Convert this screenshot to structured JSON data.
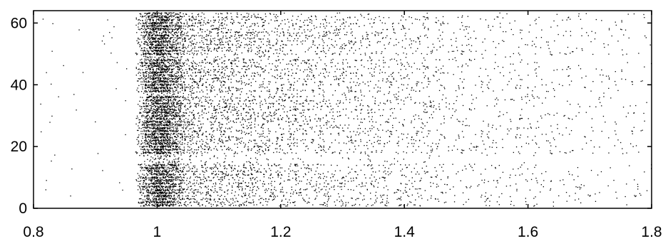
{
  "chart_data": {
    "type": "scatter",
    "title": "",
    "xlabel": "",
    "ylabel": "",
    "xlim": [
      0.8,
      1.8
    ],
    "ylim": [
      0,
      64
    ],
    "xticks": [
      0.8,
      1,
      1.2,
      1.4,
      1.6,
      1.8
    ],
    "xtick_labels": [
      "0.8",
      "1",
      "1.2",
      "1.4",
      "1.6",
      "1.8"
    ],
    "yticks": [
      0,
      20,
      40,
      60
    ],
    "ytick_labels": [
      "0",
      "20",
      "40",
      "60"
    ],
    "grid": false,
    "legend": "none",
    "marker_color": "#000000",
    "description_of_points": "Raster of events: each row (y = 1..63) has a dense cluster of points starting near x = 0.97–1.03 with density decaying toward x = 1.8; a few sparse points appear between x = 0.8 and 0.97. Rows 1–14, 18–36, 38–48, 50–62 are populated; rows near 15–17, 37 and 49 are sparse.",
    "series": [
      {
        "points_sample": [
          [
            0.82,
            6
          ],
          [
            0.86,
            4
          ],
          [
            0.9,
            28
          ],
          [
            0.88,
            44
          ],
          [
            0.92,
            61
          ],
          [
            0.97,
            2
          ],
          [
            1.0,
            5
          ],
          [
            1.02,
            9
          ],
          [
            1.05,
            12
          ],
          [
            1.1,
            3
          ],
          [
            1.2,
            6
          ],
          [
            1.3,
            10
          ],
          [
            1.5,
            7
          ],
          [
            1.7,
            4
          ],
          [
            0.98,
            20
          ],
          [
            1.01,
            24
          ],
          [
            1.1,
            22
          ],
          [
            1.3,
            26
          ],
          [
            1.5,
            29
          ],
          [
            1.7,
            33
          ],
          [
            0.99,
            40
          ],
          [
            1.02,
            45
          ],
          [
            1.2,
            42
          ],
          [
            1.4,
            46
          ],
          [
            1.6,
            39
          ],
          [
            1.0,
            52
          ],
          [
            1.03,
            57
          ],
          [
            1.15,
            55
          ],
          [
            1.35,
            60
          ],
          [
            1.55,
            62
          ],
          [
            1.75,
            58
          ]
        ]
      }
    ]
  }
}
